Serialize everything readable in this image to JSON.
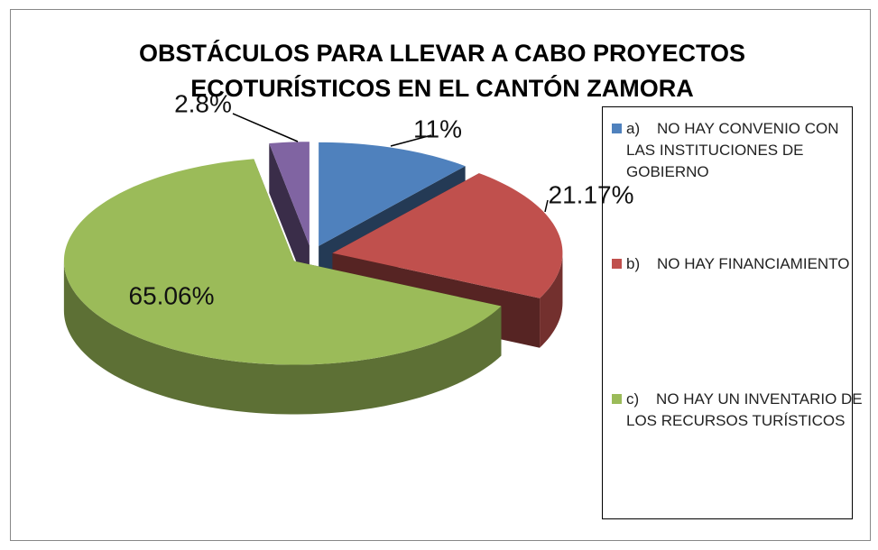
{
  "chart_data": {
    "type": "pie",
    "title": "OBSTÁCULOS PARA LLEVAR A CABO PROYECTOS ECOTURÍSTICOS EN EL CANTÓN ZAMORA",
    "categories": [
      "a)    NO HAY CONVENIO CON LAS INSTITUCIONES DE GOBIERNO",
      "b)    NO HAY FINANCIAMIENTO",
      "c)    NO HAY UN INVENTARIO DE LOS RECURSOS TURÍSTICOS",
      null
    ],
    "values": [
      11,
      21.17,
      65.06,
      2.8
    ],
    "value_labels": [
      "11%",
      "21.17%",
      "65.06%",
      "2.8%"
    ],
    "colors": [
      "#4f81bd",
      "#c0504d",
      "#9bbb59",
      "#8064a2"
    ]
  }
}
